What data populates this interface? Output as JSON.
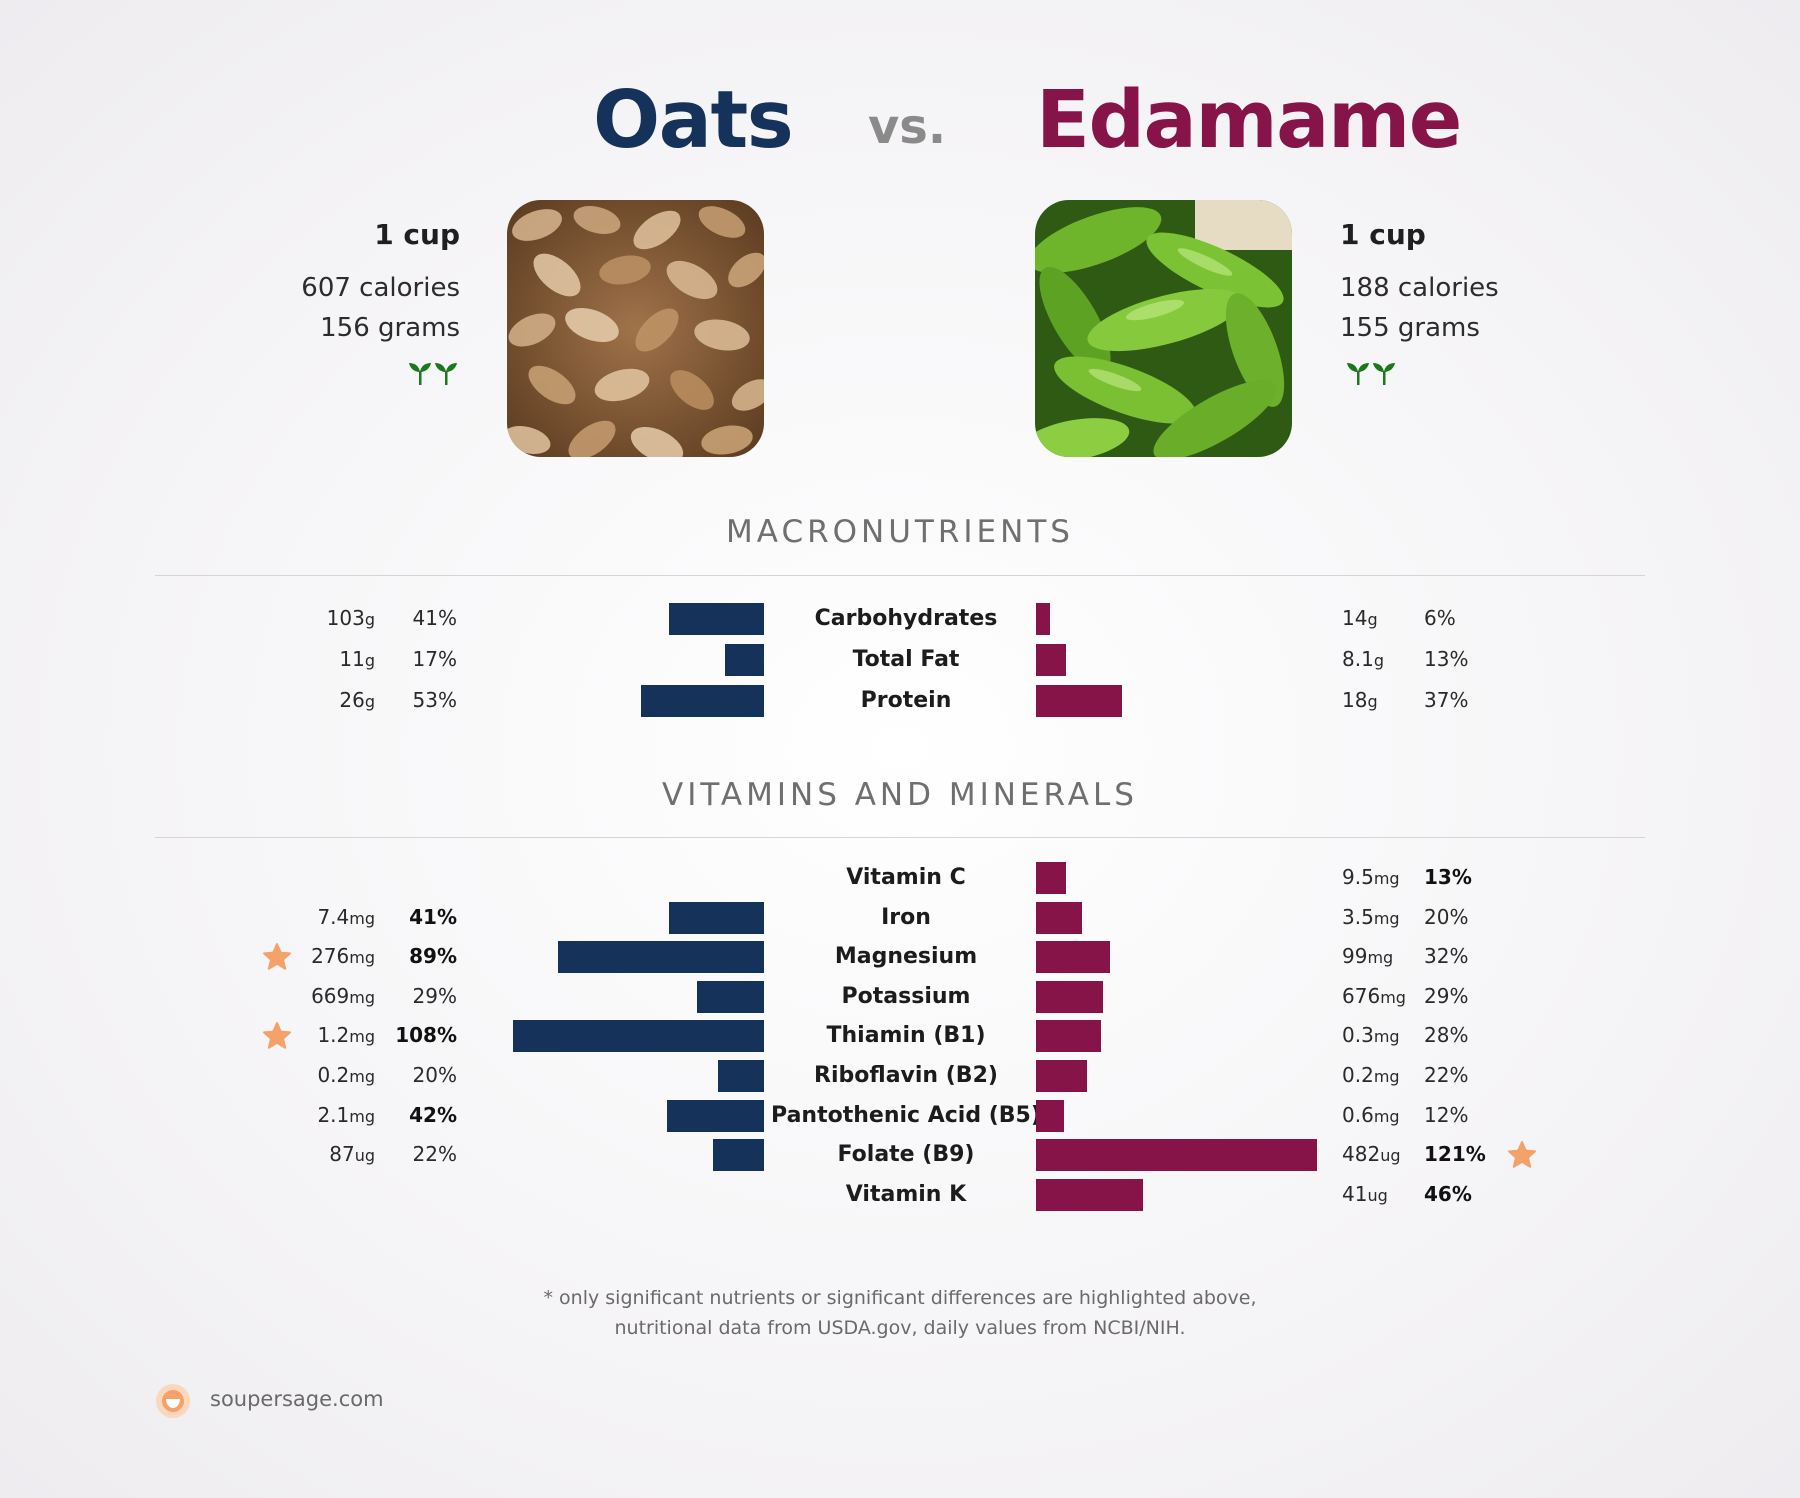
{
  "title": {
    "left": "Oats",
    "vs": "vs.",
    "right": "Edamame"
  },
  "colors": {
    "left": "#14325a",
    "right": "#861449",
    "star": "#f4a26a",
    "sprout": "#1a7a1a"
  },
  "left_food": {
    "serving": "1 cup",
    "calories": "607 calories",
    "grams": "156 grams",
    "icons": [
      "sprout-icon",
      "sprout-icon"
    ]
  },
  "right_food": {
    "serving": "1 cup",
    "calories": "188 calories",
    "grams": "155 grams",
    "icons": [
      "sprout-icon",
      "sprout-icon"
    ]
  },
  "sections": {
    "macros": "MACRONUTRIENTS",
    "vitamins": "VITAMINS AND MINERALS"
  },
  "chart_data": [
    {
      "type": "bar",
      "title": "MACRONUTRIENTS",
      "categories": [
        "Carbohydrates",
        "Total Fat",
        "Protein"
      ],
      "series": [
        {
          "name": "Oats",
          "amounts": [
            "103",
            "11",
            "26"
          ],
          "units": [
            "g",
            "g",
            "g"
          ],
          "values": [
            41,
            17,
            53
          ],
          "pct_labels": [
            "41%",
            "17%",
            "53%"
          ],
          "bold": [
            false,
            false,
            false
          ],
          "star": [
            false,
            false,
            false
          ]
        },
        {
          "name": "Edamame",
          "amounts": [
            "14",
            "8.1",
            "18"
          ],
          "units": [
            "g",
            "g",
            "g"
          ],
          "values": [
            6,
            13,
            37
          ],
          "pct_labels": [
            "6%",
            "13%",
            "37%"
          ],
          "bold": [
            false,
            false,
            false
          ],
          "star": [
            false,
            false,
            false
          ]
        }
      ]
    },
    {
      "type": "bar",
      "title": "VITAMINS AND MINERALS",
      "categories": [
        "Vitamin C",
        "Iron",
        "Magnesium",
        "Potassium",
        "Thiamin (B1)",
        "Riboflavin (B2)",
        "Pantothenic Acid (B5)",
        "Folate (B9)",
        "Vitamin K"
      ],
      "series": [
        {
          "name": "Oats",
          "amounts": [
            "",
            "7.4",
            "276",
            "669",
            "1.2",
            "0.2",
            "2.1",
            "87",
            ""
          ],
          "units": [
            "",
            "mg",
            "mg",
            "mg",
            "mg",
            "mg",
            "mg",
            "ug",
            ""
          ],
          "values": [
            null,
            41,
            89,
            29,
            108,
            20,
            42,
            22,
            null
          ],
          "pct_labels": [
            "",
            "41%",
            "89%",
            "29%",
            "108%",
            "20%",
            "42%",
            "22%",
            ""
          ],
          "bold": [
            false,
            true,
            true,
            false,
            true,
            false,
            true,
            false,
            false
          ],
          "star": [
            false,
            false,
            true,
            false,
            true,
            false,
            false,
            false,
            false
          ]
        },
        {
          "name": "Edamame",
          "amounts": [
            "9.5",
            "3.5",
            "99",
            "676",
            "0.3",
            "0.2",
            "0.6",
            "482",
            "41"
          ],
          "units": [
            "mg",
            "mg",
            "mg",
            "mg",
            "mg",
            "mg",
            "mg",
            "ug",
            "ug"
          ],
          "values": [
            13,
            20,
            32,
            29,
            28,
            22,
            12,
            121,
            46
          ],
          "pct_labels": [
            "13%",
            "20%",
            "32%",
            "29%",
            "28%",
            "22%",
            "12%",
            "121%",
            "46%"
          ],
          "bold": [
            true,
            false,
            false,
            false,
            false,
            false,
            false,
            true,
            true
          ],
          "star": [
            false,
            false,
            false,
            false,
            false,
            false,
            false,
            true,
            false
          ]
        }
      ]
    }
  ],
  "footnote": {
    "line1": "* only significant nutrients or significant differences are highlighted above,",
    "line2": "nutritional data from USDA.gov, daily values from NCBI/NIH."
  },
  "brand": {
    "name": "soupersage.com",
    "icon": "soupersage-logo-icon"
  }
}
